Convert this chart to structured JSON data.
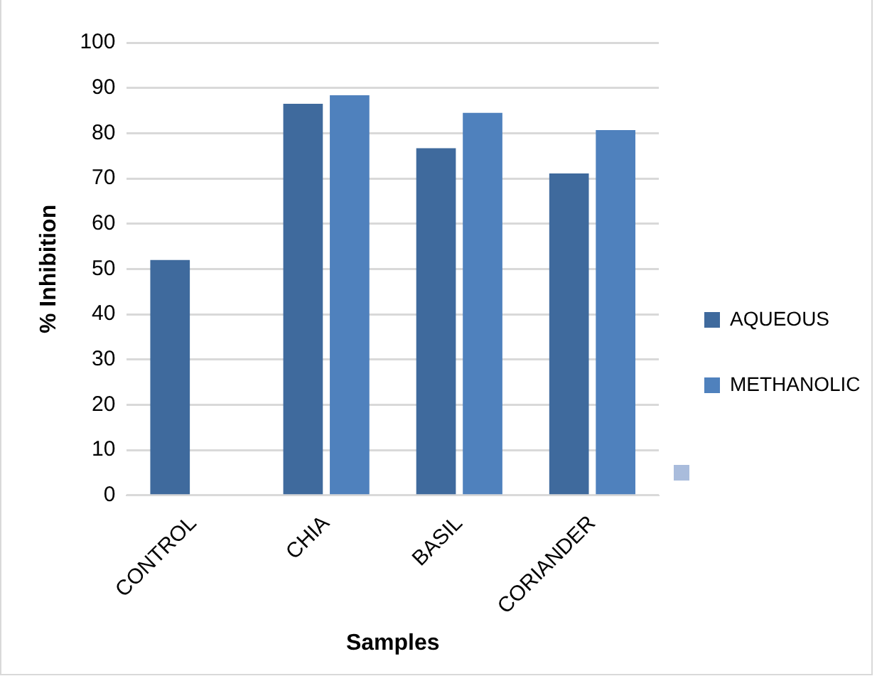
{
  "chart_data": {
    "type": "bar",
    "xlabel": "Samples",
    "ylabel": "% Inhibition",
    "categories": [
      "CONTROL",
      "CHIA",
      "BASIL",
      "CORIANDER"
    ],
    "series": [
      {
        "name": "AQUEOUS",
        "color": "#3f6a9d",
        "values": [
          52,
          86.5,
          76.7,
          71.1
        ]
      },
      {
        "name": "METHANOLIC",
        "color": "#4f81bd",
        "values": [
          null,
          88.4,
          84.5,
          80.7
        ]
      }
    ],
    "ylim": [
      0,
      100
    ],
    "yticks": [
      0,
      10,
      20,
      30,
      40,
      50,
      60,
      70,
      80,
      90,
      100
    ],
    "grid": "y",
    "legend": "right"
  }
}
